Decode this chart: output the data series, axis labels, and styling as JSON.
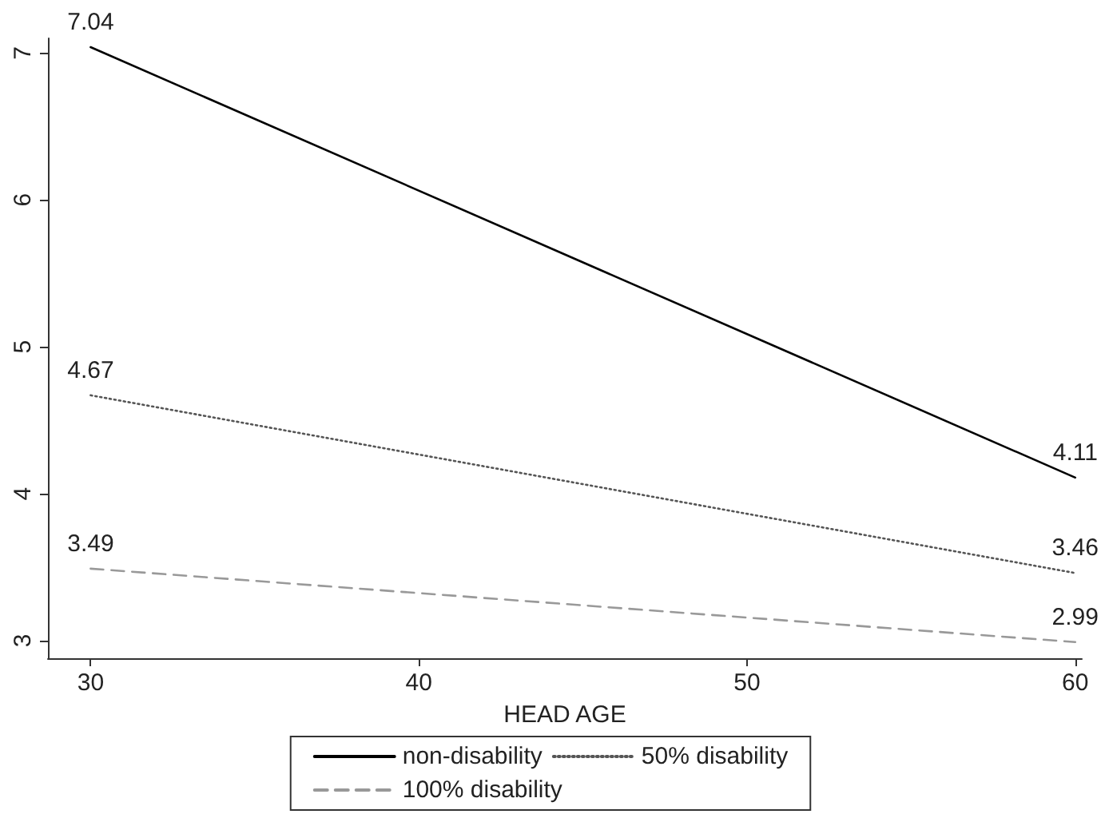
{
  "chart_data": {
    "type": "line",
    "xlabel": "HEAD AGE",
    "x": [
      30,
      60
    ],
    "series": [
      {
        "name": "non-disability",
        "color": "#000000",
        "line_style": "solid",
        "values": [
          7.04,
          4.11
        ]
      },
      {
        "name": "50% disability",
        "color": "#555555",
        "line_style": "dotted",
        "values": [
          4.67,
          3.46
        ]
      },
      {
        "name": "100% disability",
        "color": "#999999",
        "line_style": "dashed",
        "values": [
          3.49,
          2.99
        ]
      }
    ],
    "xlim": [
      28.7,
      60.2
    ],
    "xticks": [
      30,
      40,
      50,
      60
    ],
    "ylim": [
      2.88,
      7.1
    ],
    "yticks": [
      3,
      4,
      5,
      6,
      7
    ],
    "data_labels": true,
    "grid": false,
    "legend": "bottom",
    "marker": "none"
  }
}
